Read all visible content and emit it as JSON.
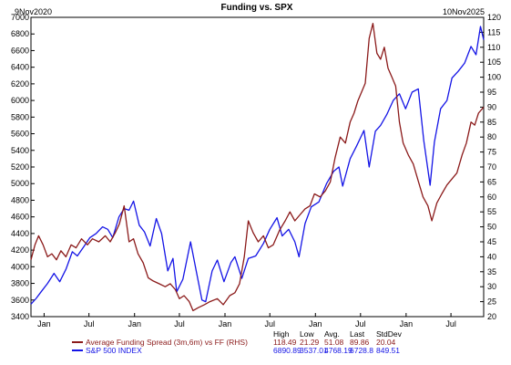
{
  "chart_data": {
    "type": "line",
    "title": "Funding vs. SPX",
    "start_marker": "9Nov2020",
    "end_marker": "10Nov2025",
    "x_tick_labels": [
      "Jan",
      "Jul",
      "Jan",
      "Jul",
      "Jan",
      "Jul",
      "Jan",
      "Jul",
      "Jan",
      "Jul"
    ],
    "x_tick_dates": [
      "2021-01-01",
      "2021-07-01",
      "2022-01-01",
      "2022-07-01",
      "2023-01-01",
      "2023-07-01",
      "2024-01-01",
      "2024-07-01",
      "2025-01-01",
      "2025-07-01"
    ],
    "x_range": [
      "2020-11-09",
      "2025-11-10"
    ],
    "y_left": {
      "min": 3400,
      "max": 7000,
      "ticks": [
        "3400",
        "3600",
        "3800",
        "4000",
        "4200",
        "4400",
        "4600",
        "4800",
        "5000",
        "5200",
        "5400",
        "5600",
        "5800",
        "6000",
        "6200",
        "6400",
        "6600",
        "6800",
        "7000"
      ]
    },
    "y_right": {
      "min": 20,
      "max": 120,
      "ticks": [
        "20",
        "25",
        "30",
        "35",
        "40",
        "45",
        "50",
        "55",
        "60",
        "65",
        "70",
        "75",
        "80",
        "85",
        "90",
        "95",
        "100",
        "105",
        "110",
        "115",
        "120"
      ]
    },
    "grid": false,
    "legend_position": "bottom-left",
    "stat_headers": [
      "High",
      "Low",
      "Avg.",
      "Last",
      "StdDev"
    ],
    "series": [
      {
        "name": "Average Funding Spread (3m,6m) vs FF (RHS)",
        "axis": "right",
        "color": "#8b1a1a",
        "stats": [
          "118.49",
          "21.29",
          "51.08",
          "89.86",
          "20.04"
        ],
        "points": [
          [
            "2020-11-09",
            39
          ],
          [
            "2020-11-25",
            44
          ],
          [
            "2020-12-10",
            47
          ],
          [
            "2020-12-28",
            44
          ],
          [
            "2021-01-15",
            40
          ],
          [
            "2021-02-01",
            41
          ],
          [
            "2021-02-20",
            39
          ],
          [
            "2021-03-10",
            42
          ],
          [
            "2021-03-30",
            40
          ],
          [
            "2021-04-20",
            44
          ],
          [
            "2021-05-10",
            43
          ],
          [
            "2021-06-01",
            46
          ],
          [
            "2021-06-25",
            44
          ],
          [
            "2021-07-15",
            46
          ],
          [
            "2021-08-10",
            45
          ],
          [
            "2021-09-05",
            47
          ],
          [
            "2021-09-25",
            45
          ],
          [
            "2021-10-15",
            48
          ],
          [
            "2021-11-01",
            51
          ],
          [
            "2021-11-20",
            57
          ],
          [
            "2021-12-10",
            45
          ],
          [
            "2021-12-28",
            46
          ],
          [
            "2022-01-15",
            41
          ],
          [
            "2022-02-05",
            38
          ],
          [
            "2022-02-25",
            33
          ],
          [
            "2022-03-15",
            32
          ],
          [
            "2022-04-10",
            31
          ],
          [
            "2022-05-05",
            30
          ],
          [
            "2022-05-25",
            31
          ],
          [
            "2022-06-15",
            29
          ],
          [
            "2022-07-01",
            26
          ],
          [
            "2022-07-20",
            27
          ],
          [
            "2022-08-10",
            25
          ],
          [
            "2022-08-25",
            22
          ],
          [
            "2022-09-15",
            23
          ],
          [
            "2022-10-10",
            24
          ],
          [
            "2022-11-01",
            25
          ],
          [
            "2022-12-01",
            26
          ],
          [
            "2022-12-25",
            24
          ],
          [
            "2023-01-20",
            27
          ],
          [
            "2023-02-10",
            28
          ],
          [
            "2023-03-01",
            31
          ],
          [
            "2023-03-20",
            40
          ],
          [
            "2023-04-05",
            52
          ],
          [
            "2023-04-25",
            48
          ],
          [
            "2023-05-15",
            45
          ],
          [
            "2023-06-05",
            47
          ],
          [
            "2023-06-25",
            43
          ],
          [
            "2023-07-15",
            44
          ],
          [
            "2023-08-10",
            49
          ],
          [
            "2023-09-01",
            52
          ],
          [
            "2023-09-20",
            55
          ],
          [
            "2023-10-10",
            52
          ],
          [
            "2023-10-30",
            54
          ],
          [
            "2023-11-20",
            56
          ],
          [
            "2023-12-10",
            57
          ],
          [
            "2023-12-28",
            61
          ],
          [
            "2024-01-20",
            60
          ],
          [
            "2024-02-10",
            62
          ],
          [
            "2024-03-01",
            65
          ],
          [
            "2024-03-20",
            73
          ],
          [
            "2024-04-10",
            80
          ],
          [
            "2024-05-01",
            78
          ],
          [
            "2024-05-20",
            85
          ],
          [
            "2024-06-05",
            88
          ],
          [
            "2024-06-20",
            92
          ],
          [
            "2024-07-05",
            95
          ],
          [
            "2024-07-20",
            98
          ],
          [
            "2024-08-05",
            113
          ],
          [
            "2024-08-20",
            118
          ],
          [
            "2024-09-05",
            108
          ],
          [
            "2024-09-20",
            106
          ],
          [
            "2024-10-05",
            110
          ],
          [
            "2024-10-20",
            103
          ],
          [
            "2024-11-05",
            100
          ],
          [
            "2024-11-20",
            97
          ],
          [
            "2024-12-05",
            85
          ],
          [
            "2024-12-20",
            78
          ],
          [
            "2025-01-10",
            74
          ],
          [
            "2025-01-30",
            71
          ],
          [
            "2025-02-20",
            65
          ],
          [
            "2025-03-10",
            60
          ],
          [
            "2025-03-30",
            57
          ],
          [
            "2025-04-15",
            52
          ],
          [
            "2025-05-05",
            58
          ],
          [
            "2025-05-25",
            61
          ],
          [
            "2025-06-15",
            64
          ],
          [
            "2025-07-05",
            66
          ],
          [
            "2025-07-25",
            68
          ],
          [
            "2025-08-15",
            74
          ],
          [
            "2025-09-01",
            78
          ],
          [
            "2025-09-20",
            85
          ],
          [
            "2025-10-05",
            84
          ],
          [
            "2025-10-20",
            88
          ],
          [
            "2025-11-10",
            90
          ]
        ]
      },
      {
        "name": "S&P 500 INDEX",
        "axis": "left",
        "color": "#1414e6",
        "stats": [
          "6890.89",
          "3537.01",
          "4768.19",
          "6728.8",
          "849.51"
        ],
        "points": [
          [
            "2020-11-09",
            3550
          ],
          [
            "2020-11-30",
            3620
          ],
          [
            "2020-12-20",
            3700
          ],
          [
            "2021-01-15",
            3800
          ],
          [
            "2021-02-10",
            3920
          ],
          [
            "2021-03-05",
            3820
          ],
          [
            "2021-03-30",
            3970
          ],
          [
            "2021-04-25",
            4180
          ],
          [
            "2021-05-15",
            4130
          ],
          [
            "2021-06-10",
            4240
          ],
          [
            "2021-07-05",
            4350
          ],
          [
            "2021-07-30",
            4400
          ],
          [
            "2021-08-25",
            4480
          ],
          [
            "2021-09-15",
            4450
          ],
          [
            "2021-10-05",
            4350
          ],
          [
            "2021-10-30",
            4600
          ],
          [
            "2021-11-20",
            4700
          ],
          [
            "2021-12-10",
            4680
          ],
          [
            "2021-12-28",
            4790
          ],
          [
            "2022-01-20",
            4500
          ],
          [
            "2022-02-10",
            4420
          ],
          [
            "2022-03-05",
            4250
          ],
          [
            "2022-03-30",
            4580
          ],
          [
            "2022-04-20",
            4400
          ],
          [
            "2022-05-15",
            3950
          ],
          [
            "2022-06-05",
            4100
          ],
          [
            "2022-06-20",
            3700
          ],
          [
            "2022-07-15",
            3850
          ],
          [
            "2022-08-15",
            4300
          ],
          [
            "2022-09-10",
            3900
          ],
          [
            "2022-09-30",
            3600
          ],
          [
            "2022-10-15",
            3580
          ],
          [
            "2022-11-10",
            3950
          ],
          [
            "2022-12-01",
            4080
          ],
          [
            "2022-12-28",
            3820
          ],
          [
            "2023-01-25",
            4050
          ],
          [
            "2023-02-10",
            4120
          ],
          [
            "2023-03-10",
            3860
          ],
          [
            "2023-04-05",
            4100
          ],
          [
            "2023-05-05",
            4130
          ],
          [
            "2023-06-05",
            4280
          ],
          [
            "2023-07-01",
            4450
          ],
          [
            "2023-07-30",
            4590
          ],
          [
            "2023-08-20",
            4370
          ],
          [
            "2023-09-15",
            4450
          ],
          [
            "2023-10-10",
            4300
          ],
          [
            "2023-10-27",
            4120
          ],
          [
            "2023-11-20",
            4520
          ],
          [
            "2023-12-15",
            4720
          ],
          [
            "2024-01-15",
            4780
          ],
          [
            "2024-02-15",
            5000
          ],
          [
            "2024-03-15",
            5150
          ],
          [
            "2024-04-05",
            5200
          ],
          [
            "2024-04-20",
            4970
          ],
          [
            "2024-05-20",
            5300
          ],
          [
            "2024-06-15",
            5450
          ],
          [
            "2024-07-15",
            5640
          ],
          [
            "2024-08-05",
            5200
          ],
          [
            "2024-08-30",
            5630
          ],
          [
            "2024-09-20",
            5700
          ],
          [
            "2024-10-15",
            5830
          ],
          [
            "2024-11-10",
            6000
          ],
          [
            "2024-12-05",
            6080
          ],
          [
            "2024-12-30",
            5900
          ],
          [
            "2025-01-25",
            6100
          ],
          [
            "2025-02-19",
            6140
          ],
          [
            "2025-03-13",
            5520
          ],
          [
            "2025-04-08",
            4980
          ],
          [
            "2025-04-25",
            5500
          ],
          [
            "2025-05-20",
            5900
          ],
          [
            "2025-06-15",
            6000
          ],
          [
            "2025-07-05",
            6270
          ],
          [
            "2025-07-30",
            6350
          ],
          [
            "2025-08-25",
            6450
          ],
          [
            "2025-09-20",
            6650
          ],
          [
            "2025-10-10",
            6550
          ],
          [
            "2025-10-28",
            6890
          ],
          [
            "2025-11-10",
            6730
          ]
        ]
      }
    ]
  }
}
